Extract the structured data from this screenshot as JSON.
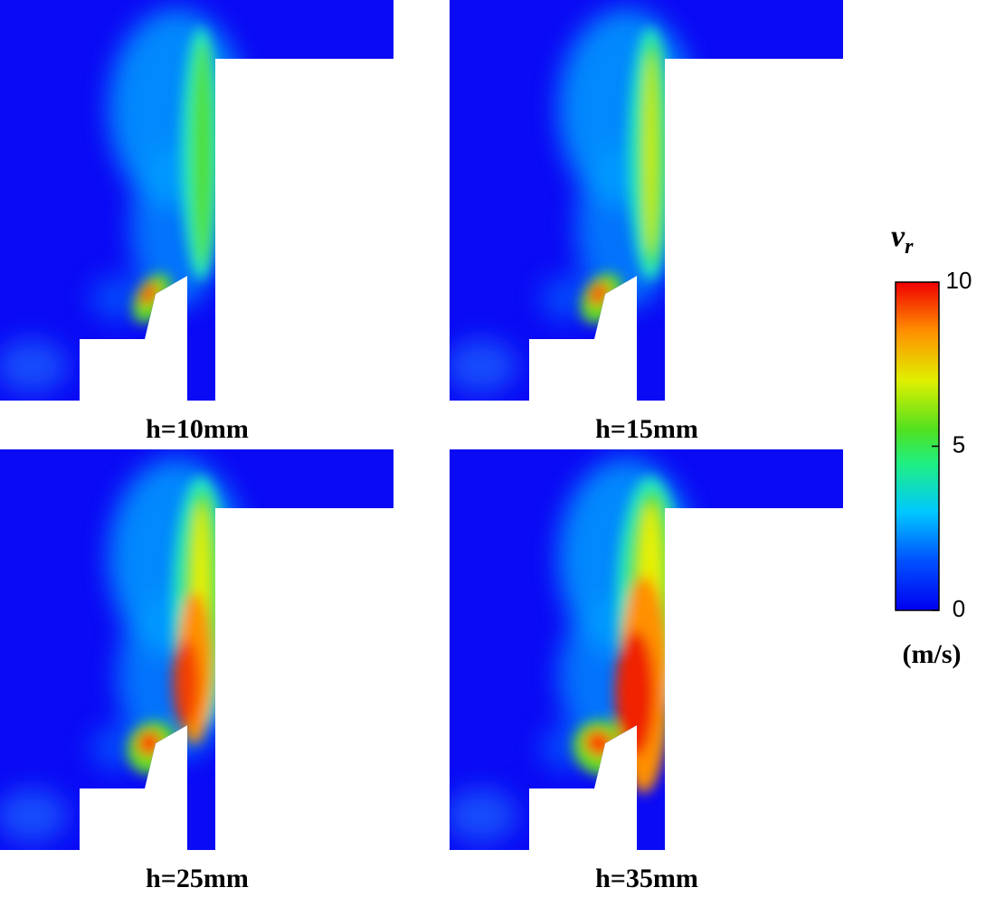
{
  "panels": [
    {
      "label": "h=10mm"
    },
    {
      "label": "h=15mm"
    },
    {
      "label": "h=25mm"
    },
    {
      "label": "h=35mm"
    }
  ],
  "colorbar": {
    "title": "v",
    "subscript": "r",
    "unit": "(m/s)",
    "lim": [
      0,
      10
    ],
    "ticks": [
      0,
      5,
      10
    ]
  }
}
